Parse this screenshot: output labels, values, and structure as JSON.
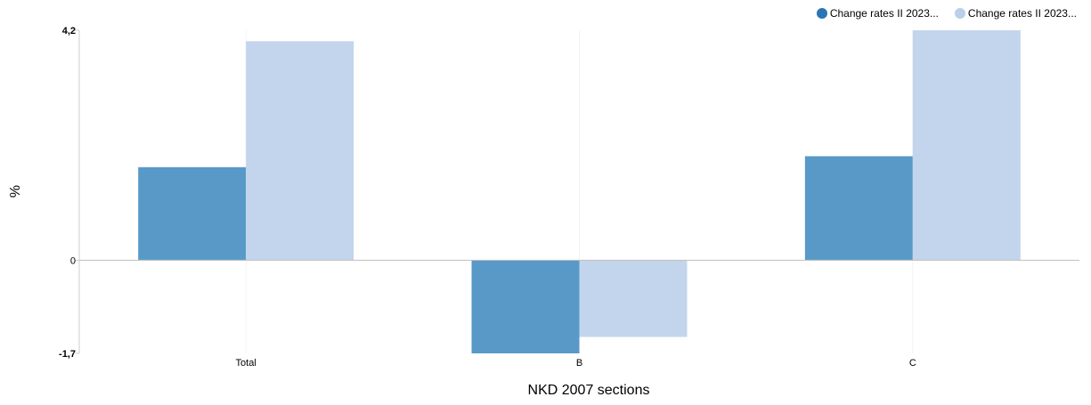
{
  "chart_data": {
    "type": "bar",
    "categories": [
      "Total",
      "B",
      "C"
    ],
    "series": [
      {
        "name": "Change rates II 2023...",
        "values": [
          1.7,
          -1.7,
          1.9
        ],
        "color": "#5899c8"
      },
      {
        "name": "Change rates II 2023...",
        "values": [
          4.0,
          -1.4,
          4.2
        ],
        "color": "#c3d5ec"
      }
    ],
    "legend_colors": [
      "#2a75b5",
      "#b9cfeb"
    ],
    "xlabel": "NKD 2007 sections",
    "ylabel": "%",
    "ylim": [
      -1.7,
      4.2
    ],
    "yticks": [
      {
        "value": 4.2,
        "label": "4,2",
        "bold": true
      },
      {
        "value": 0,
        "label": "0",
        "bold": false
      },
      {
        "value": -1.7,
        "label": "-1,7",
        "bold": true
      }
    ],
    "legend_position": "top-right",
    "grid": false
  }
}
